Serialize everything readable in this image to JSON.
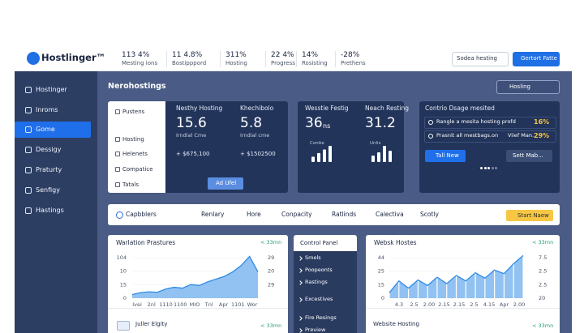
{
  "header": {
    "logo": "Hostlinger™",
    "stats": [
      {
        "value": "113 4%",
        "label": "Mesting ions"
      },
      {
        "value": "11 4.8%",
        "label": "Bostipppord"
      },
      {
        "value": "311%",
        "label": "Hosting"
      },
      {
        "value": "22 4%",
        "label": "Progress"
      },
      {
        "value": "14%",
        "label": "Rosisting"
      },
      {
        "value": "-28%",
        "label": "Prethens"
      }
    ],
    "search": "Sodea hesting",
    "button": "Gertort Fatte"
  },
  "sidebar": {
    "items": [
      "Hostinger",
      "Inroms",
      "Gome",
      "Dessigy",
      "Praturty",
      "Senfigy",
      "Hastings"
    ],
    "active": 2
  },
  "page": {
    "title": "Nerohostings",
    "select": "Hosling"
  },
  "menu_card": [
    "Pustens",
    "Hosting",
    "Helenets",
    "Compatice",
    "Tatals"
  ],
  "metrics": {
    "items": [
      {
        "title": "Nesthy Hosting",
        "value": "15.6",
        "sub": "Irndial Cme",
        "delta": "+ $675,100"
      },
      {
        "title": "Khechibolo",
        "value": "5.8",
        "sub": "Irndial cme",
        "delta": "+ $1502500"
      }
    ],
    "button": "Ad Ufel"
  },
  "stats_card": [
    {
      "title": "Wesstie Festig",
      "value": "36",
      "unit": "ns",
      "bar_label": "Contie",
      "bars": [
        3,
        5,
        7,
        9
      ]
    },
    {
      "title": "Neach Resting",
      "value": "31.2",
      "bar_label": "Unlis",
      "bars": [
        4,
        6,
        10,
        7
      ]
    }
  ],
  "usage": {
    "title": "Contrio Dsage mesited",
    "rows": [
      {
        "text": "Rangle a mesita hosting profd",
        "value": "16%"
      },
      {
        "text": "Prasnit all mestbags.on",
        "extra": "Viief Man.",
        "value": "29%"
      }
    ],
    "primary": "Tall New",
    "secondary": "Sett Mab..."
  },
  "tabs": {
    "label": "Capbblers",
    "items": [
      "Renlary",
      "Hore",
      "Conpacity",
      "Ratlinds",
      "Calectiva",
      "Scotly"
    ],
    "button": "Start Naew"
  },
  "chart1": {
    "type": "area",
    "title": "Warlation Prastures",
    "badge": "< 33mn",
    "left_labels": [
      "104",
      "10",
      "15",
      "0"
    ],
    "right_labels": [
      "29",
      "20",
      "29"
    ],
    "x_labels": [
      "Ivei",
      "2nl",
      "1110",
      "1100",
      "MIO",
      "Tnl",
      "Apr",
      "1101",
      "Wor"
    ],
    "values": [
      8,
      12,
      14,
      13,
      20,
      24,
      22,
      30,
      28,
      36,
      42,
      48,
      58,
      72,
      92,
      58
    ],
    "ylim": [
      0,
      100
    ],
    "footer": "Juller Elgity",
    "footer_badge": "< 33mn"
  },
  "control_panel": {
    "title": "Control Panel",
    "items": [
      "Smels",
      "Poopeonts",
      "Rastings",
      "Excestives",
      "Fire Resings",
      "Preview"
    ]
  },
  "chart2": {
    "type": "area",
    "title": "Websk Hostes",
    "badge": "< 33mn",
    "left_labels": [
      "44",
      "25",
      "15",
      "0"
    ],
    "right_labels": [
      "7.5",
      "2.5",
      "2.5",
      "20"
    ],
    "x_labels": [
      "4.3",
      "2.5",
      "2.00",
      "2.15",
      "2.15",
      "2.5",
      "4.15",
      "Apr",
      "2.00"
    ],
    "values": [
      12,
      38,
      22,
      40,
      28,
      46,
      32,
      50,
      38,
      56,
      44,
      62,
      54,
      76,
      94
    ],
    "ylim": [
      0,
      100
    ],
    "footer": "Website Hosting",
    "footer_badge": "< 33mn"
  }
}
